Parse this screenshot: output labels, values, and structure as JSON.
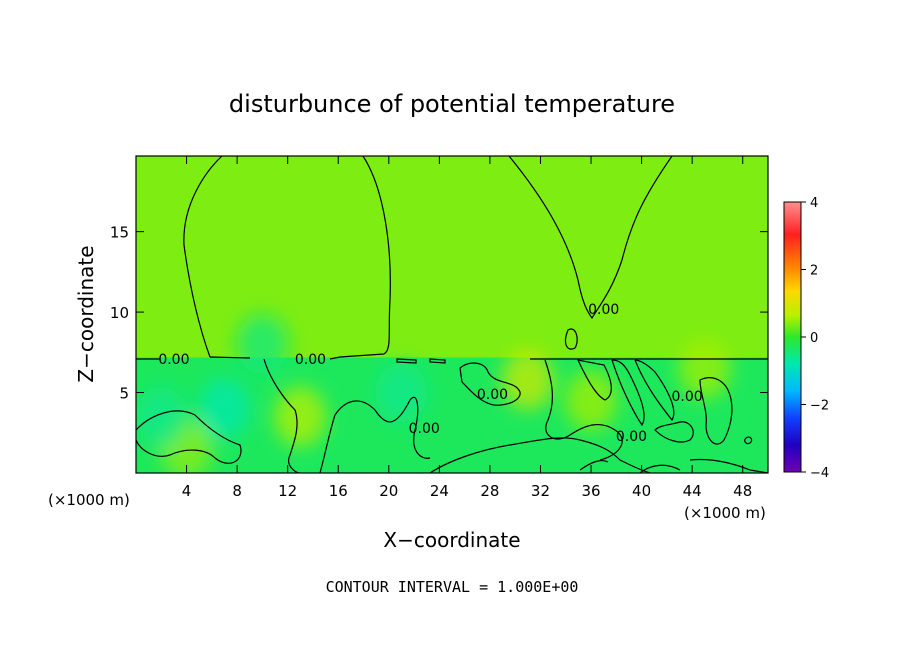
{
  "chart_data": {
    "type": "heatmap",
    "title": "disturbunce of potential temperature",
    "xlabel": "X−coordinate",
    "ylabel": "Z−coordinate",
    "x_unit_left": "(×1000 m)",
    "x_unit_right": "(×1000 m)",
    "xlim": [
      0,
      50
    ],
    "ylim": [
      0,
      19.7
    ],
    "x_ticks": [
      4,
      8,
      12,
      16,
      20,
      24,
      28,
      32,
      36,
      40,
      44,
      48
    ],
    "x_tick_labels": [
      "4",
      "8",
      "12",
      "16",
      "20",
      "24",
      "28",
      "32",
      "36",
      "40",
      "44",
      "48"
    ],
    "y_ticks": [
      5,
      10,
      15
    ],
    "y_tick_labels": [
      "5",
      "10",
      "15"
    ],
    "colorbar": {
      "min": -4,
      "max": 4,
      "ticks": [
        4,
        2,
        0,
        -2,
        -4
      ],
      "tick_labels": [
        "4",
        "2",
        "0",
        "−2",
        "−4"
      ]
    },
    "contour_interval_text": "CONTOUR INTERVAL = 1.000E+00",
    "contour_labels": [
      {
        "text": "0.00",
        "x": 3.0,
        "z": 7.1
      },
      {
        "text": "0.00",
        "x": 13.8,
        "z": 7.1
      },
      {
        "text": "0.00",
        "x": 28.2,
        "z": 4.9
      },
      {
        "text": "0.00",
        "x": 22.8,
        "z": 2.8
      },
      {
        "text": "0.00",
        "x": 37.0,
        "z": 10.2
      },
      {
        "text": "0.00",
        "x": 39.2,
        "z": 2.3
      },
      {
        "text": "0.00",
        "x": 43.6,
        "z": 4.8
      }
    ],
    "fields": {
      "upper_layer": {
        "z_range": [
          7.2,
          19.7
        ],
        "value": 0.4
      },
      "lower_layer": {
        "z_range": [
          0,
          7.2
        ],
        "value": -0.3
      },
      "warm_patches": [
        {
          "x": 13,
          "z": 3.5,
          "value": 0.7
        },
        {
          "x": 31,
          "z": 5.8,
          "value": 0.9
        },
        {
          "x": 36,
          "z": 4.5,
          "value": 0.6
        },
        {
          "x": 45,
          "z": 6.5,
          "value": 0.6
        },
        {
          "x": 4,
          "z": 1.5,
          "value": 0.5
        }
      ],
      "cool_patches": [
        {
          "x": 7,
          "z": 4.0,
          "value": -0.8
        },
        {
          "x": 10,
          "z": 8.0,
          "value": -0.5
        },
        {
          "x": 21,
          "z": 5.0,
          "value": -0.6
        },
        {
          "x": 2,
          "z": 3.5,
          "value": -0.6
        }
      ]
    },
    "colors": {
      "upper": "#2ee82a",
      "lower": "#27e577",
      "frame": "#000000"
    }
  }
}
